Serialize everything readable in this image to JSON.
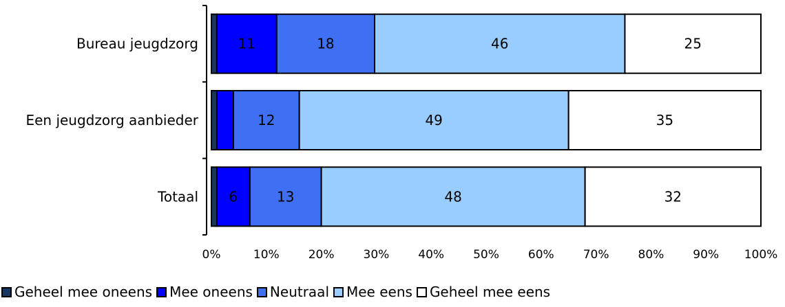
{
  "chart_data": {
    "type": "bar",
    "orientation": "horizontal",
    "stacked": "percent",
    "categories": [
      "Bureau jeugdzorg",
      "Een jeugdzorg aanbieder",
      "Totaal"
    ],
    "series": [
      {
        "name": "Geheel mee oneens",
        "color": "#17375e",
        "values": [
          1,
          1,
          1
        ],
        "labels": [
          "",
          "",
          ""
        ]
      },
      {
        "name": "Mee oneens",
        "color": "#0000ff",
        "values": [
          11,
          3,
          6
        ],
        "labels": [
          "11",
          "",
          "6"
        ]
      },
      {
        "name": "Neutraal",
        "color": "#3f6ff2",
        "values": [
          18,
          12,
          13
        ],
        "labels": [
          "18",
          "12",
          "13"
        ]
      },
      {
        "name": "Mee eens",
        "color": "#99ccff",
        "values": [
          46,
          49,
          48
        ],
        "labels": [
          "46",
          "49",
          "48"
        ]
      },
      {
        "name": "Geheel mee eens",
        "color": "#ffffff",
        "values": [
          25,
          35,
          32
        ],
        "labels": [
          "25",
          "35",
          "32"
        ]
      }
    ],
    "xlim": [
      0,
      100
    ],
    "x_ticks": [
      "0%",
      "10%",
      "20%",
      "30%",
      "40%",
      "50%",
      "60%",
      "70%",
      "80%",
      "90%",
      "100%"
    ],
    "grid": false,
    "legend_position": "bottom"
  }
}
